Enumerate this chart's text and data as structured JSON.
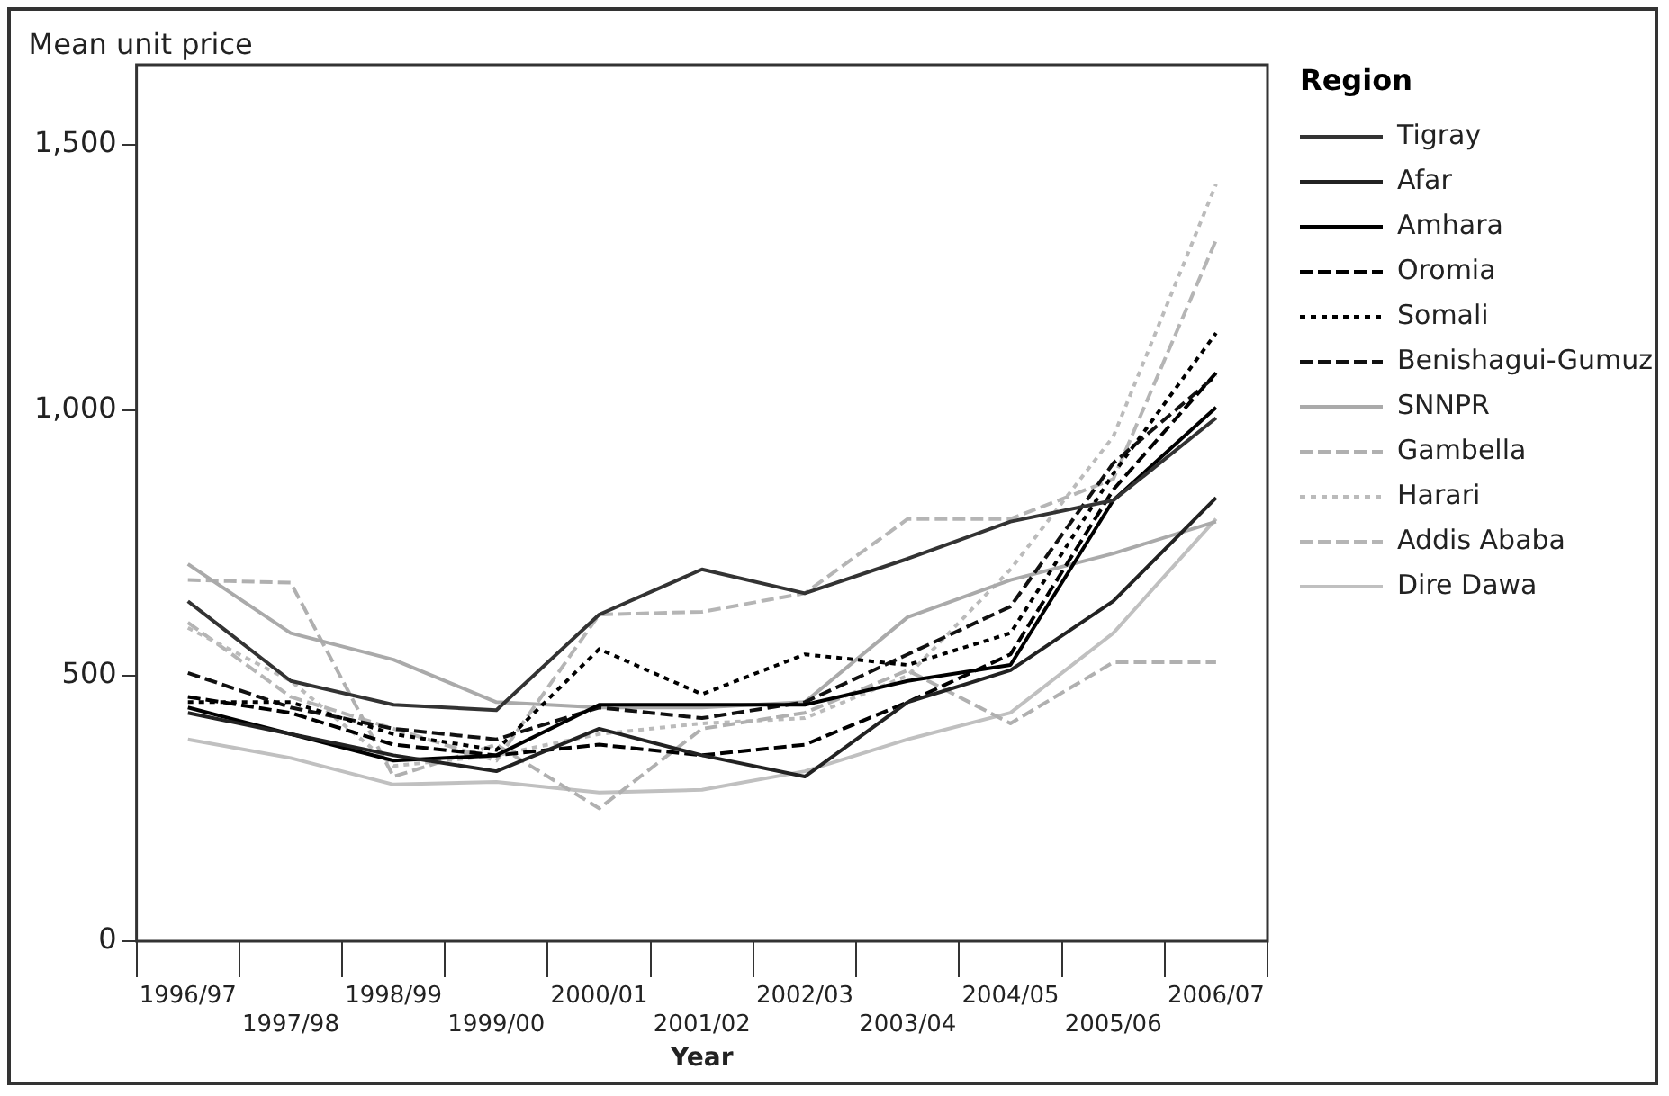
{
  "chart_data": {
    "type": "line",
    "ylabel": "Mean unit price",
    "xlabel": "Year",
    "legend_title": "Region",
    "legend": "right",
    "grid": false,
    "categories": [
      "1996/97",
      "1997/98",
      "1998/99",
      "1999/00",
      "2000/01",
      "2001/02",
      "2002/03",
      "2003/04",
      "2004/05",
      "2005/06",
      "2006/07"
    ],
    "ylim": [
      0,
      1650
    ],
    "yticks": [
      0,
      500,
      {
        "value": 1000,
        "label": "1,000"
      },
      {
        "value": 1500,
        "label": "1,500"
      }
    ],
    "series": [
      {
        "name": "Tigray",
        "color": "#333333",
        "line_style": "solid",
        "values": [
          640,
          490,
          445,
          435,
          615,
          700,
          655,
          720,
          790,
          830,
          985
        ]
      },
      {
        "name": "Afar",
        "color": "#222222",
        "line_style": "solid",
        "values": [
          430,
          390,
          350,
          320,
          400,
          350,
          310,
          450,
          510,
          640,
          835
        ]
      },
      {
        "name": "Amhara",
        "color": "#000000",
        "line_style": "solid",
        "values": [
          440,
          390,
          340,
          350,
          445,
          445,
          445,
          490,
          520,
          830,
          1005
        ]
      },
      {
        "name": "Oromia",
        "color": "#000000",
        "line_style": "dashed",
        "values": [
          460,
          430,
          370,
          350,
          370,
          350,
          370,
          450,
          540,
          850,
          1070
        ]
      },
      {
        "name": "Somali",
        "color": "#000000",
        "line_style": "dotted",
        "values": [
          450,
          450,
          390,
          360,
          550,
          465,
          540,
          520,
          580,
          880,
          1145
        ]
      },
      {
        "name": "Benishagui-Gumuz",
        "color": "#111111",
        "line_style": "dashed",
        "values": [
          505,
          440,
          400,
          380,
          440,
          420,
          450,
          540,
          630,
          900,
          1065
        ]
      },
      {
        "name": "SNNPR",
        "color": "#aaaaaa",
        "line_style": "solid",
        "values": [
          710,
          580,
          530,
          450,
          440,
          440,
          450,
          610,
          680,
          730,
          790
        ]
      },
      {
        "name": "Gambella",
        "color": "#b0b0b0",
        "line_style": "dashed",
        "values": [
          680,
          675,
          310,
          370,
          250,
          400,
          430,
          510,
          410,
          525,
          525
        ]
      },
      {
        "name": "Harari",
        "color": "#bbbbbb",
        "line_style": "dotted",
        "values": [
          590,
          490,
          330,
          350,
          390,
          410,
          420,
          500,
          700,
          950,
          1425
        ]
      },
      {
        "name": "Addis Ababa",
        "color": "#b5b5b5",
        "line_style": "dashed",
        "values": [
          600,
          460,
          400,
          340,
          615,
          620,
          655,
          795,
          795,
          870,
          1320
        ]
      },
      {
        "name": "Dire Dawa",
        "color": "#c0c0c0",
        "line_style": "solid",
        "values": [
          380,
          345,
          295,
          300,
          280,
          285,
          320,
          380,
          430,
          580,
          795
        ]
      }
    ]
  }
}
